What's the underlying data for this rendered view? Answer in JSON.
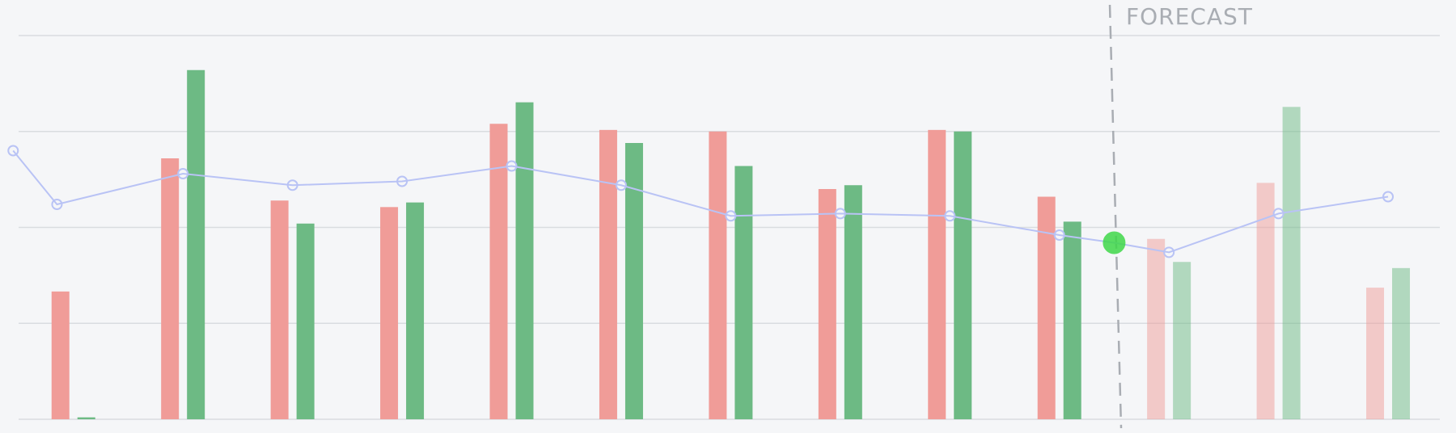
{
  "chart_data": {
    "type": "bar",
    "forecast_label": "FORECAST",
    "forecast_x": 9.46,
    "categories": [
      null,
      null,
      null,
      null,
      null,
      null,
      null,
      null,
      null,
      null,
      null,
      null,
      null
    ],
    "forecast_from": 10,
    "series": [
      {
        "name": null,
        "color": "#f09c98",
        "values": [
          33.3,
          68,
          57,
          55.3,
          77,
          75.4,
          75,
          60,
          75.4,
          58,
          47,
          61.6,
          34.3
        ]
      },
      {
        "name": null,
        "color": "#6dba84",
        "values": [
          0.5,
          91,
          51,
          56.5,
          82.6,
          72,
          66,
          61,
          75,
          51.5,
          41,
          81.4,
          39.4
        ]
      }
    ],
    "line": {
      "type": "line",
      "color": "#b9c3f5",
      "highlight_point": 11,
      "highlight_color": "#3fd84a",
      "x": [
        -0.55,
        -0.15,
        1,
        2,
        3,
        4,
        5,
        6,
        7,
        8,
        9,
        9.5,
        10,
        11,
        12
      ],
      "values": [
        70,
        56,
        64,
        61,
        62,
        66,
        61,
        53,
        53.6,
        53,
        48,
        46,
        43.5,
        53.6,
        58
      ]
    },
    "xlim": [
      -0.67,
      12.62
    ],
    "ylim": [
      0,
      100
    ],
    "yticks": [
      0,
      25,
      50,
      75,
      100
    ],
    "grid": true
  }
}
